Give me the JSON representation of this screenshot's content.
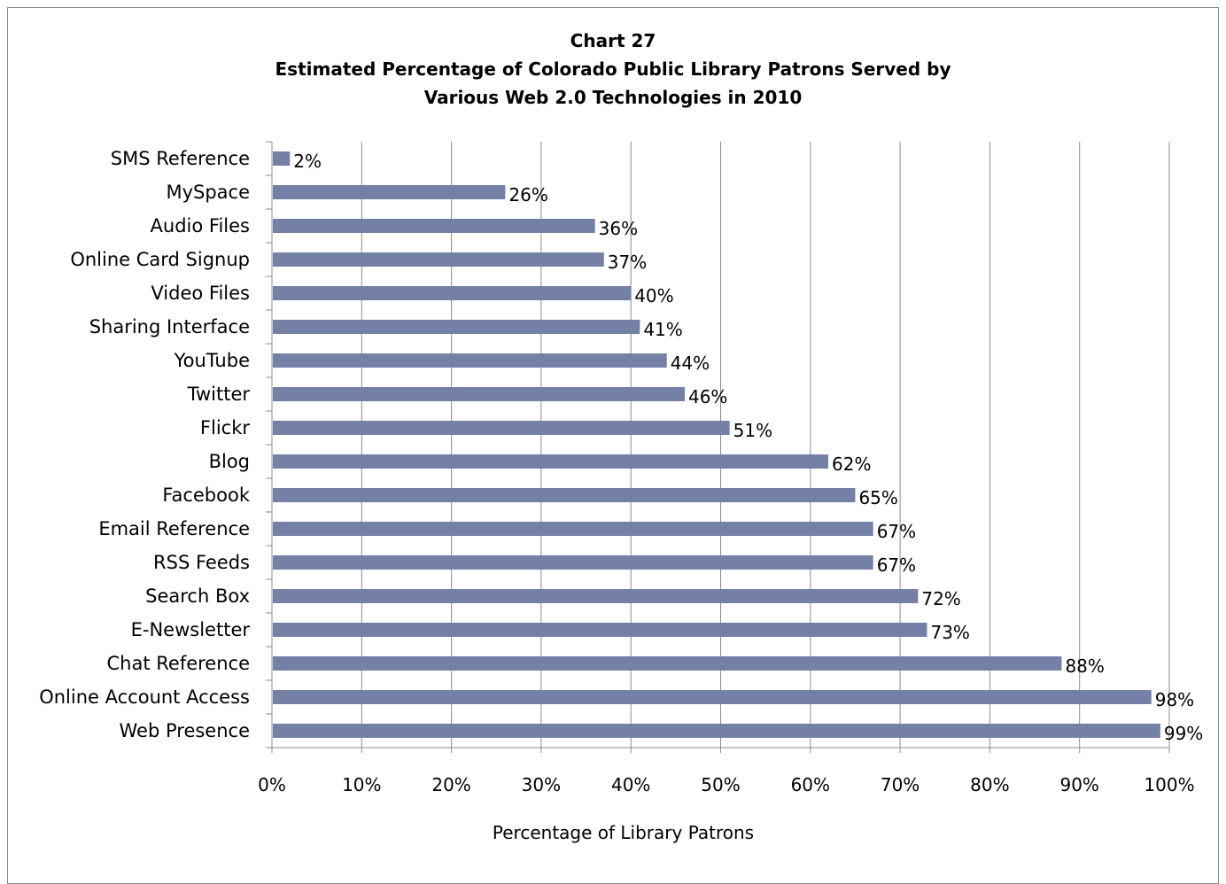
{
  "chart_data": {
    "type": "bar",
    "orientation": "horizontal",
    "title_line1": "Chart 27",
    "title_line2": "Estimated Percentage of Colorado Public Library Patrons Served by",
    "title_line3": "Various Web 2.0 Technologies in 2010",
    "xlabel": "Percentage of Library Patrons",
    "xlim": [
      0,
      100
    ],
    "xticks": [
      "0%",
      "10%",
      "20%",
      "30%",
      "40%",
      "50%",
      "60%",
      "70%",
      "80%",
      "90%",
      "100%"
    ],
    "categories": [
      "SMS Reference",
      "MySpace",
      "Audio Files",
      "Online Card Signup",
      "Video Files",
      "Sharing Interface",
      "YouTube",
      "Twitter",
      "Flickr",
      "Blog",
      "Facebook",
      "Email Reference",
      "RSS Feeds",
      "Search Box",
      "E-Newsletter",
      "Chat Reference",
      "Online Account Access",
      "Web Presence"
    ],
    "values": [
      2,
      26,
      36,
      37,
      40,
      41,
      44,
      46,
      51,
      62,
      65,
      67,
      67,
      72,
      73,
      88,
      98,
      99
    ],
    "data_labels": [
      "2%",
      "26%",
      "36%",
      "37%",
      "40%",
      "41%",
      "44%",
      "46%",
      "51%",
      "62%",
      "65%",
      "67%",
      "67%",
      "72%",
      "73%",
      "88%",
      "98%",
      "99%"
    ],
    "bar_color": "#7480a6",
    "grid": true,
    "legend": "none"
  }
}
